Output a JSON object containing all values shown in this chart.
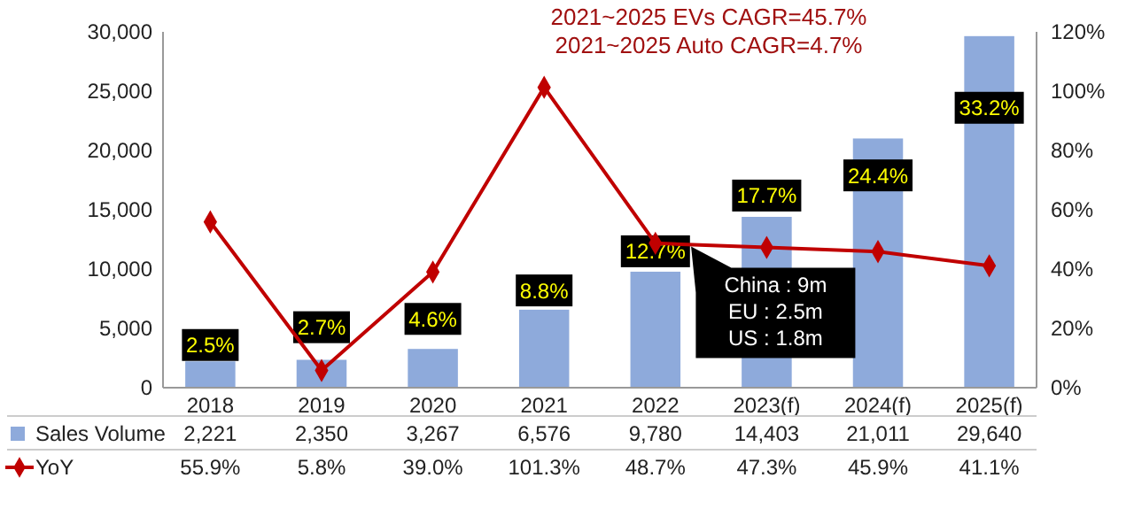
{
  "chart_data": {
    "type": "bar",
    "categories": [
      "2018",
      "2019",
      "2020",
      "2021",
      "2022",
      "2023(f)",
      "2024(f)",
      "2025(f)"
    ],
    "series": [
      {
        "name": "Sales Volume",
        "color": "#8eaadb",
        "values": [
          2221,
          2350,
          3267,
          6576,
          9780,
          14403,
          21011,
          29640
        ],
        "value_labels": [
          "2,221",
          "2,350",
          "3,267",
          "6,576",
          "9,780",
          "14,403",
          "21,011",
          "29,640"
        ]
      },
      {
        "name": "YoY",
        "type": "line",
        "axis": "y2",
        "color": "#c00000",
        "marker": "diamond",
        "line_style": "solid",
        "values": [
          55.9,
          5.8,
          39.0,
          101.3,
          48.7,
          47.3,
          45.9,
          41.1
        ],
        "value_labels": [
          "55.9%",
          "5.8%",
          "39.0%",
          "101.3%",
          "48.7%",
          "47.3%",
          "45.9%",
          "41.1%"
        ]
      }
    ],
    "ylim": [
      0,
      30000
    ],
    "yticks": [
      0,
      {
        "value": 5000,
        "label": "5,000"
      },
      {
        "value": 10000,
        "label": "10,000"
      },
      {
        "value": 15000,
        "label": "15,000"
      },
      {
        "value": 20000,
        "label": "20,000"
      },
      {
        "value": 25000,
        "label": "25,000"
      },
      {
        "value": 30000,
        "label": "30,000"
      }
    ],
    "y2lim": [
      0,
      120
    ],
    "y2ticks": [
      {
        "value": 0,
        "label": "0%"
      },
      {
        "value": 20,
        "label": "20%"
      },
      {
        "value": 40,
        "label": "40%"
      },
      {
        "value": 60,
        "label": "60%"
      },
      {
        "value": 80,
        "label": "80%"
      },
      {
        "value": 100,
        "label": "100%"
      },
      {
        "value": 120,
        "label": "120%"
      }
    ],
    "grid": false,
    "legend": "bottom",
    "annotations": [
      "2021~2025 EVs CAGR=45.7%",
      "2021~2025 Auto CAGR=4.7%",
      "China : 9m\nEU : 2.5m\nUS : 1.8m",
      {
        "text": "2.5%",
        "x": "2018",
        "y": 3600
      },
      {
        "text": "2.7%",
        "x": "2019",
        "y": 5100
      },
      {
        "text": "4.6%",
        "x": "2020",
        "y": 5800
      },
      {
        "text": "8.8%",
        "x": "2021",
        "y": 8200
      },
      {
        "text": "12.7%",
        "x": "2022",
        "y": 11500
      },
      {
        "text": "17.7%",
        "x": "2023(f)",
        "y": 16200
      },
      {
        "text": "24.4%",
        "x": "2024(f)",
        "y": 17900
      },
      {
        "text": "33.2%",
        "x": "2025(f)",
        "y": 23600
      }
    ]
  }
}
